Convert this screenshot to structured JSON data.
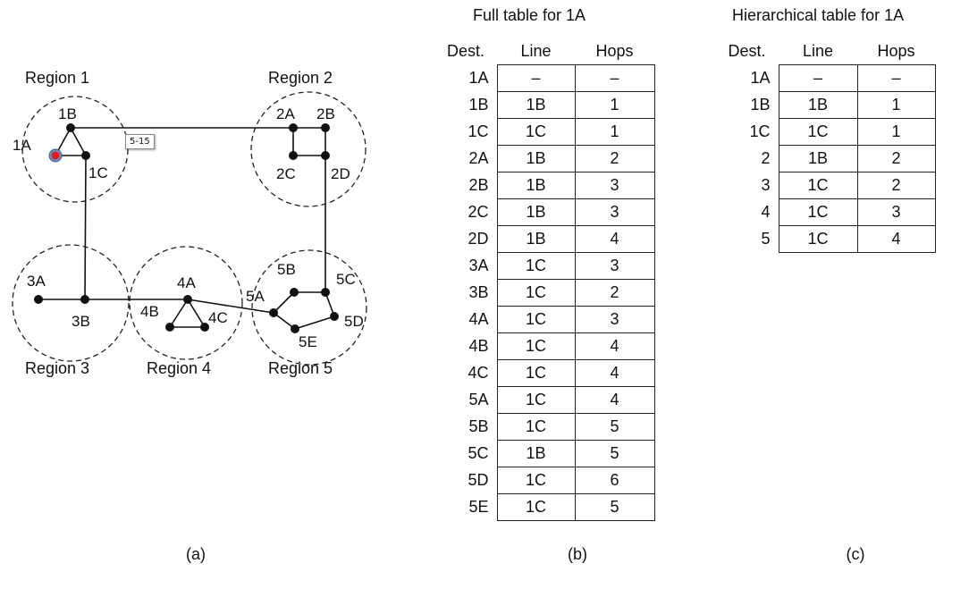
{
  "diagram": {
    "regions": [
      "Region 1",
      "Region 2",
      "Region 3",
      "Region 4",
      "Region 5"
    ],
    "nodes": [
      "1A",
      "1B",
      "1C",
      "2A",
      "2B",
      "2C",
      "2D",
      "3A",
      "3B",
      "4A",
      "4B",
      "4C",
      "5A",
      "5B",
      "5C",
      "5D",
      "5E"
    ],
    "links": [
      [
        "1A",
        "1B"
      ],
      [
        "1B",
        "1C"
      ],
      [
        "1A",
        "1C"
      ],
      [
        "1B",
        "2A"
      ],
      [
        "2A",
        "2B"
      ],
      [
        "2B",
        "2D"
      ],
      [
        "2D",
        "2C"
      ],
      [
        "2C",
        "2A"
      ],
      [
        "2D",
        "5C"
      ],
      [
        "1C",
        "3B"
      ],
      [
        "3A",
        "3B"
      ],
      [
        "3B",
        "4A"
      ],
      [
        "4A",
        "4B"
      ],
      [
        "4B",
        "4C"
      ],
      [
        "4C",
        "4A"
      ],
      [
        "4A",
        "5A"
      ],
      [
        "5A",
        "5B"
      ],
      [
        "5B",
        "5C"
      ],
      [
        "5C",
        "5D"
      ],
      [
        "5D",
        "5E"
      ],
      [
        "5E",
        "5A"
      ]
    ],
    "selected_node": "1A",
    "selected_node_color": "#e02020",
    "tooltip": "5-15"
  },
  "captions": {
    "a": "(a)",
    "b": "(b)",
    "c": "(c)"
  },
  "full_table": {
    "title": "Full table for 1A",
    "headers": [
      "Dest.",
      "Line",
      "Hops"
    ],
    "rows": [
      [
        "1A",
        "–",
        "–"
      ],
      [
        "1B",
        "1B",
        "1"
      ],
      [
        "1C",
        "1C",
        "1"
      ],
      [
        "2A",
        "1B",
        "2"
      ],
      [
        "2B",
        "1B",
        "3"
      ],
      [
        "2C",
        "1B",
        "3"
      ],
      [
        "2D",
        "1B",
        "4"
      ],
      [
        "3A",
        "1C",
        "3"
      ],
      [
        "3B",
        "1C",
        "2"
      ],
      [
        "4A",
        "1C",
        "3"
      ],
      [
        "4B",
        "1C",
        "4"
      ],
      [
        "4C",
        "1C",
        "4"
      ],
      [
        "5A",
        "1C",
        "4"
      ],
      [
        "5B",
        "1C",
        "5"
      ],
      [
        "5C",
        "1B",
        "5"
      ],
      [
        "5D",
        "1C",
        "6"
      ],
      [
        "5E",
        "1C",
        "5"
      ]
    ]
  },
  "hier_table": {
    "title": "Hierarchical table for 1A",
    "headers": [
      "Dest.",
      "Line",
      "Hops"
    ],
    "rows": [
      [
        "1A",
        "–",
        "–"
      ],
      [
        "1B",
        "1B",
        "1"
      ],
      [
        "1C",
        "1C",
        "1"
      ],
      [
        "2",
        "1B",
        "2"
      ],
      [
        "3",
        "1C",
        "2"
      ],
      [
        "4",
        "1C",
        "3"
      ],
      [
        "5",
        "1C",
        "4"
      ]
    ]
  }
}
